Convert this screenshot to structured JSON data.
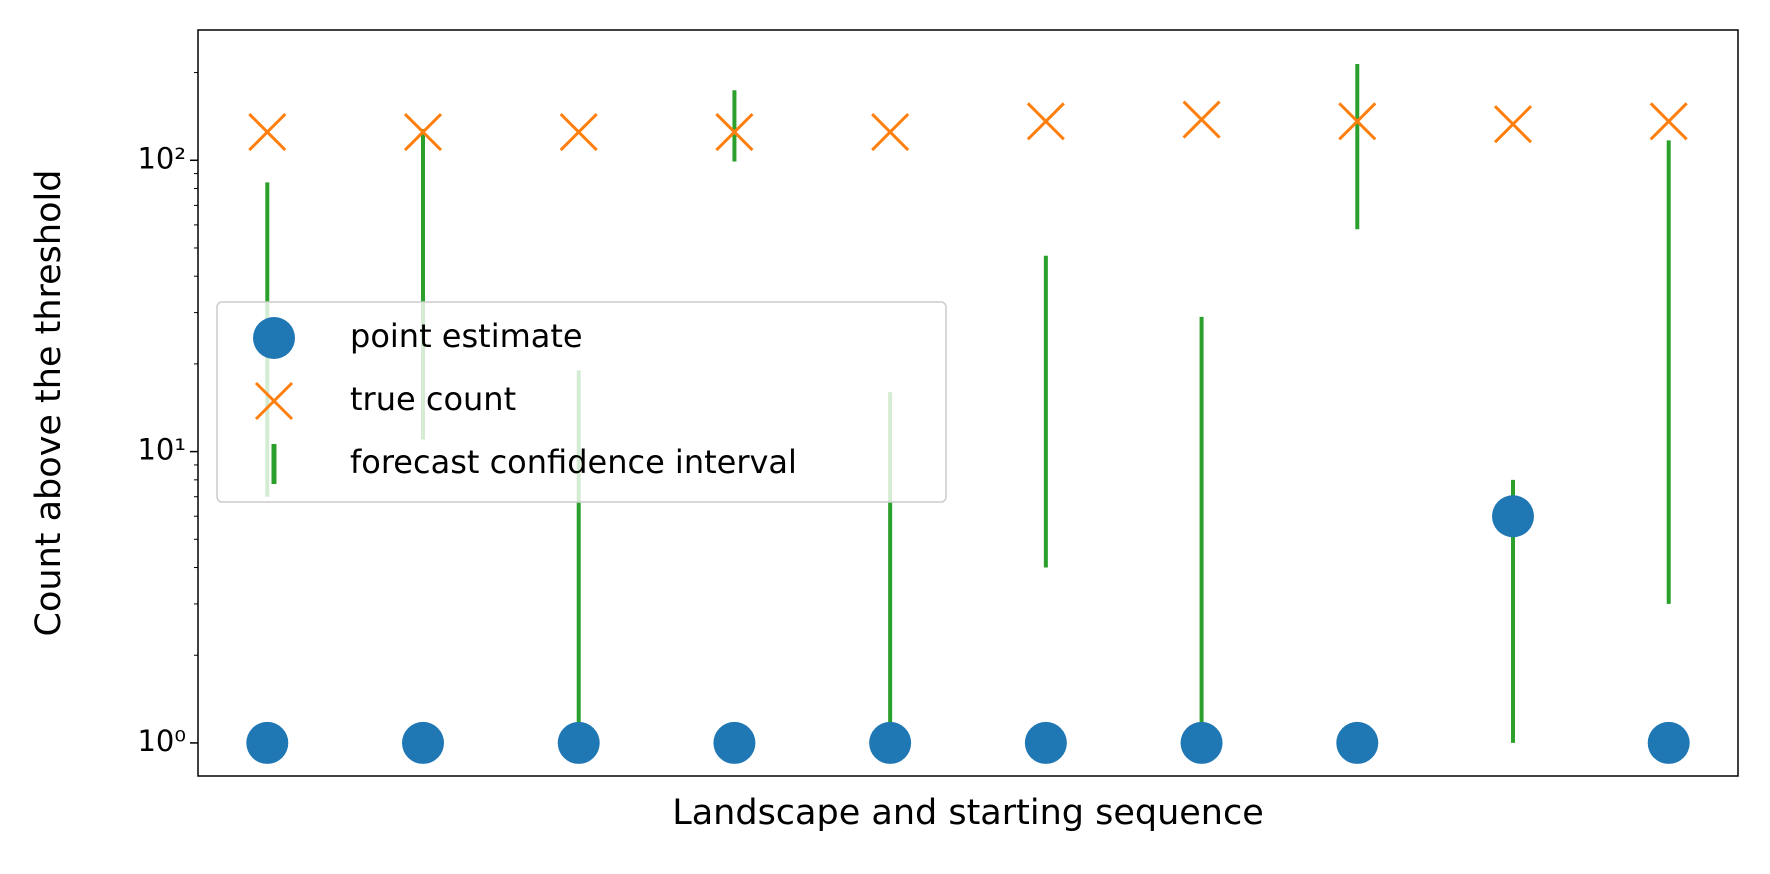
{
  "chart_data": {
    "type": "scatter",
    "x_label": "Landscape and starting sequence",
    "y_label": "Count above the threshold",
    "categories": [
      null,
      null,
      null,
      null,
      null,
      null,
      null,
      null,
      null,
      null
    ],
    "log_y": true,
    "ylim": [
      0.77,
      280
    ],
    "yticks": [
      {
        "value": 1,
        "label": "10⁰"
      },
      {
        "value": 10,
        "label": "10¹"
      },
      {
        "value": 100,
        "label": "10²"
      }
    ],
    "yminorticks": [
      2,
      3,
      4,
      5,
      6,
      7,
      8,
      9,
      20,
      30,
      40,
      50,
      60,
      70,
      80,
      90,
      200
    ],
    "legend": "center left",
    "series": [
      {
        "name": "point estimate",
        "color": "#1f77b4",
        "marker": "circle",
        "values": [
          1,
          1,
          1,
          1,
          1,
          1,
          1,
          1,
          6,
          1
        ]
      },
      {
        "name": "true count",
        "color": "#ff7f0e",
        "marker": "x",
        "values": [
          125,
          125,
          125,
          125,
          125,
          136,
          138,
          136,
          133,
          136
        ]
      },
      {
        "name": "forecast confidence interval",
        "color": "#2ca02c",
        "marker": "interval",
        "low": [
          7,
          11,
          1,
          99,
          1,
          4,
          1,
          58,
          1,
          3
        ],
        "high": [
          84,
          128,
          19,
          174,
          16,
          47,
          29,
          214,
          8,
          117
        ]
      }
    ]
  }
}
